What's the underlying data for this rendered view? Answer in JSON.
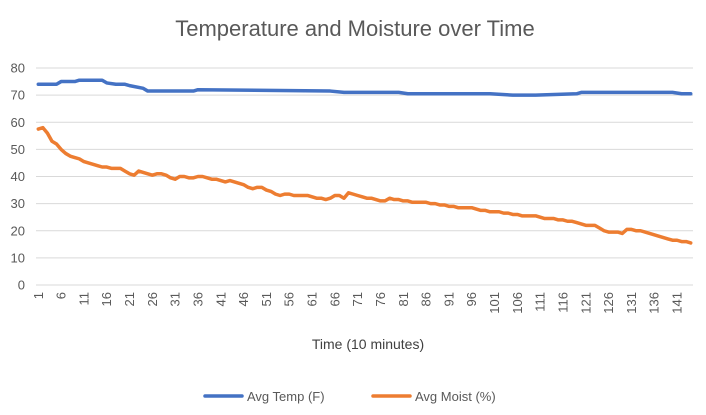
{
  "chart_data": {
    "type": "line",
    "title": "Temperature and Moisture over Time",
    "xlabel": "Time (10 minutes)",
    "ylabel": "",
    "ylim": [
      0,
      80
    ],
    "y_ticks": [
      0,
      10,
      20,
      30,
      40,
      50,
      60,
      70,
      80
    ],
    "x_start": 1,
    "x_end": 144,
    "x_tick_labels": [
      1,
      6,
      11,
      16,
      21,
      26,
      31,
      36,
      41,
      46,
      51,
      56,
      61,
      66,
      71,
      76,
      81,
      86,
      91,
      96,
      101,
      106,
      111,
      116,
      121,
      126,
      131,
      136,
      141
    ],
    "grid": "horizontal",
    "legend_position": "bottom",
    "colors": {
      "temp": "#4472C4",
      "moist": "#ED7D31",
      "grid": "#D9D9D9",
      "text": "#595959"
    },
    "series": [
      {
        "name": "Avg Temp (F)",
        "color": "#4472C4",
        "points": [
          [
            1,
            74
          ],
          [
            3,
            74
          ],
          [
            5,
            74
          ],
          [
            6,
            75
          ],
          [
            9,
            75
          ],
          [
            10,
            75.5
          ],
          [
            15,
            75.5
          ],
          [
            16,
            74.5
          ],
          [
            18,
            74
          ],
          [
            20,
            74
          ],
          [
            21,
            73.5
          ],
          [
            24,
            72.5
          ],
          [
            25,
            71.5
          ],
          [
            35,
            71.5
          ],
          [
            36,
            72
          ],
          [
            65,
            71.5
          ],
          [
            68,
            71
          ],
          [
            71,
            71
          ],
          [
            80,
            71
          ],
          [
            82,
            70.5
          ],
          [
            90,
            70.5
          ],
          [
            95,
            70.5
          ],
          [
            100,
            70.5
          ],
          [
            105,
            70
          ],
          [
            110,
            70
          ],
          [
            119,
            70.5
          ],
          [
            120,
            71
          ],
          [
            125,
            71
          ],
          [
            130,
            71
          ],
          [
            137,
            71
          ],
          [
            140,
            71
          ],
          [
            142,
            70.5
          ],
          [
            144,
            70.5
          ]
        ]
      },
      {
        "name": "Avg Moist (%)",
        "color": "#ED7D31",
        "points": [
          [
            1,
            57.5
          ],
          [
            2,
            58
          ],
          [
            3,
            56
          ],
          [
            4,
            53
          ],
          [
            5,
            52
          ],
          [
            6,
            50
          ],
          [
            7,
            48.5
          ],
          [
            8,
            47.5
          ],
          [
            9,
            47
          ],
          [
            10,
            46.5
          ],
          [
            11,
            45.5
          ],
          [
            12,
            45
          ],
          [
            13,
            44.5
          ],
          [
            14,
            44
          ],
          [
            15,
            43.5
          ],
          [
            16,
            43.5
          ],
          [
            17,
            43
          ],
          [
            18,
            43
          ],
          [
            19,
            43
          ],
          [
            20,
            42
          ],
          [
            21,
            41
          ],
          [
            22,
            40.5
          ],
          [
            23,
            42
          ],
          [
            24,
            41.5
          ],
          [
            25,
            41
          ],
          [
            26,
            40.5
          ],
          [
            27,
            41
          ],
          [
            28,
            41
          ],
          [
            29,
            40.5
          ],
          [
            30,
            39.5
          ],
          [
            31,
            39
          ],
          [
            32,
            40
          ],
          [
            33,
            40
          ],
          [
            34,
            39.5
          ],
          [
            35,
            39.5
          ],
          [
            36,
            40
          ],
          [
            37,
            40
          ],
          [
            38,
            39.5
          ],
          [
            39,
            39
          ],
          [
            40,
            39
          ],
          [
            41,
            38.5
          ],
          [
            42,
            38
          ],
          [
            43,
            38.5
          ],
          [
            44,
            38
          ],
          [
            45,
            37.5
          ],
          [
            46,
            37
          ],
          [
            47,
            36
          ],
          [
            48,
            35.5
          ],
          [
            49,
            36
          ],
          [
            50,
            36
          ],
          [
            51,
            35
          ],
          [
            52,
            34.5
          ],
          [
            53,
            33.5
          ],
          [
            54,
            33
          ],
          [
            55,
            33.5
          ],
          [
            56,
            33.5
          ],
          [
            57,
            33
          ],
          [
            58,
            33
          ],
          [
            59,
            33
          ],
          [
            60,
            33
          ],
          [
            61,
            32.5
          ],
          [
            62,
            32
          ],
          [
            63,
            32
          ],
          [
            64,
            31.5
          ],
          [
            65,
            32
          ],
          [
            66,
            33
          ],
          [
            67,
            33
          ],
          [
            68,
            32
          ],
          [
            69,
            34
          ],
          [
            70,
            33.5
          ],
          [
            71,
            33
          ],
          [
            72,
            32.5
          ],
          [
            73,
            32
          ],
          [
            74,
            32
          ],
          [
            75,
            31.5
          ],
          [
            76,
            31
          ],
          [
            77,
            31
          ],
          [
            78,
            32
          ],
          [
            79,
            31.5
          ],
          [
            80,
            31.5
          ],
          [
            81,
            31
          ],
          [
            82,
            31
          ],
          [
            83,
            30.5
          ],
          [
            84,
            30.5
          ],
          [
            85,
            30.5
          ],
          [
            86,
            30.5
          ],
          [
            87,
            30
          ],
          [
            88,
            30
          ],
          [
            89,
            29.5
          ],
          [
            90,
            29.5
          ],
          [
            91,
            29
          ],
          [
            92,
            29
          ],
          [
            93,
            28.5
          ],
          [
            94,
            28.5
          ],
          [
            95,
            28.5
          ],
          [
            96,
            28.5
          ],
          [
            97,
            28
          ],
          [
            98,
            27.5
          ],
          [
            99,
            27.5
          ],
          [
            100,
            27
          ],
          [
            101,
            27
          ],
          [
            102,
            27
          ],
          [
            103,
            26.5
          ],
          [
            104,
            26.5
          ],
          [
            105,
            26
          ],
          [
            106,
            26
          ],
          [
            107,
            25.5
          ],
          [
            108,
            25.5
          ],
          [
            109,
            25.5
          ],
          [
            110,
            25.5
          ],
          [
            111,
            25
          ],
          [
            112,
            24.5
          ],
          [
            113,
            24.5
          ],
          [
            114,
            24.5
          ],
          [
            115,
            24
          ],
          [
            116,
            24
          ],
          [
            117,
            23.5
          ],
          [
            118,
            23.5
          ],
          [
            119,
            23
          ],
          [
            120,
            22.5
          ],
          [
            121,
            22
          ],
          [
            122,
            22
          ],
          [
            123,
            22
          ],
          [
            124,
            21
          ],
          [
            125,
            20
          ],
          [
            126,
            19.5
          ],
          [
            127,
            19.5
          ],
          [
            128,
            19.5
          ],
          [
            129,
            19
          ],
          [
            130,
            20.5
          ],
          [
            131,
            20.5
          ],
          [
            132,
            20
          ],
          [
            133,
            20
          ],
          [
            134,
            19.5
          ],
          [
            135,
            19
          ],
          [
            136,
            18.5
          ],
          [
            137,
            18
          ],
          [
            138,
            17.5
          ],
          [
            139,
            17
          ],
          [
            140,
            16.5
          ],
          [
            141,
            16.5
          ],
          [
            142,
            16
          ],
          [
            143,
            16
          ],
          [
            144,
            15.5
          ]
        ]
      }
    ]
  }
}
